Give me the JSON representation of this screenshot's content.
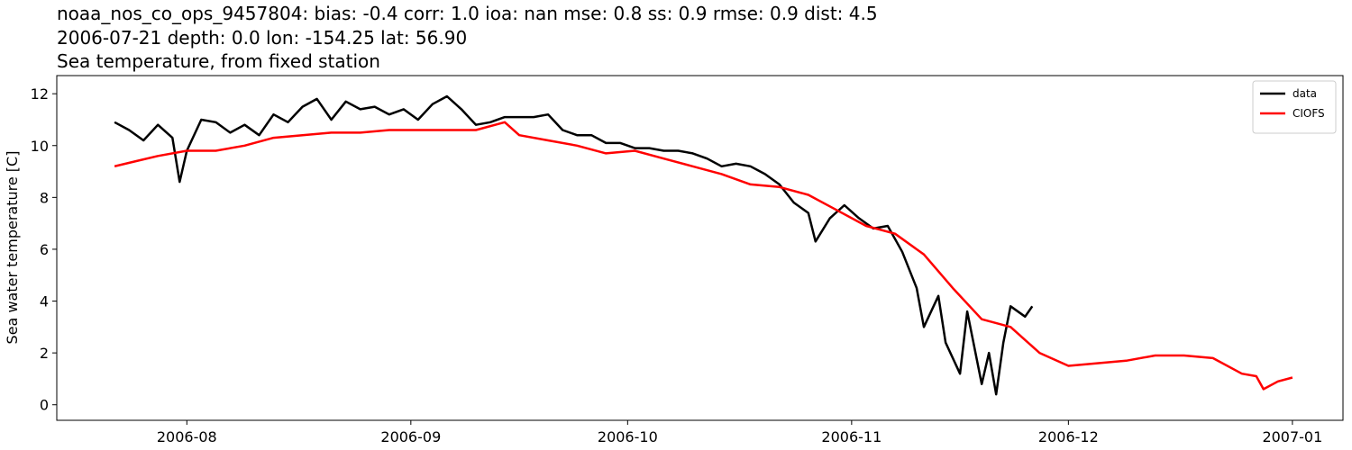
{
  "chart_data": {
    "type": "line",
    "title": "noaa_nos_co_ops_9457804: bias: -0.4  corr: 1.0  ioa: nan  mse: 0.8  ss: 0.9  rmse: 0.9  dist: 4.5",
    "subtitle": "2006-07-21 depth: 0.0 lon: -154.25 lat: 56.90",
    "subtitle2": "Sea temperature, from fixed station",
    "y_label": "Sea water temperature [C]",
    "xlim": [
      "2006-07-14",
      "2007-01-08"
    ],
    "xticks": [
      {
        "value": "2006-08-01",
        "label": "2006-08"
      },
      {
        "value": "2006-09-01",
        "label": "2006-09"
      },
      {
        "value": "2006-10-01",
        "label": "2006-10"
      },
      {
        "value": "2006-11-01",
        "label": "2006-11"
      },
      {
        "value": "2006-12-01",
        "label": "2006-12"
      },
      {
        "value": "2007-01-01",
        "label": "2007-01"
      }
    ],
    "ylim": [
      -0.6,
      12.7
    ],
    "yticks": [
      0,
      2,
      4,
      6,
      8,
      10,
      12
    ],
    "legend": "upper-right",
    "series": [
      {
        "name": "data",
        "color": "#000000",
        "x": [
          "2006-07-22",
          "2006-07-24",
          "2006-07-26",
          "2006-07-28",
          "2006-07-30",
          "2006-07-31",
          "2006-08-01",
          "2006-08-03",
          "2006-08-05",
          "2006-08-07",
          "2006-08-09",
          "2006-08-11",
          "2006-08-13",
          "2006-08-15",
          "2006-08-17",
          "2006-08-19",
          "2006-08-21",
          "2006-08-23",
          "2006-08-25",
          "2006-08-27",
          "2006-08-29",
          "2006-08-31",
          "2006-09-02",
          "2006-09-04",
          "2006-09-06",
          "2006-09-08",
          "2006-09-10",
          "2006-09-12",
          "2006-09-14",
          "2006-09-16",
          "2006-09-18",
          "2006-09-20",
          "2006-09-22",
          "2006-09-24",
          "2006-09-26",
          "2006-09-28",
          "2006-09-30",
          "2006-10-02",
          "2006-10-04",
          "2006-10-06",
          "2006-10-08",
          "2006-10-10",
          "2006-10-12",
          "2006-10-14",
          "2006-10-16",
          "2006-10-18",
          "2006-10-20",
          "2006-10-22",
          "2006-10-24",
          "2006-10-26",
          "2006-10-27",
          "2006-10-29",
          "2006-10-31",
          "2006-11-02",
          "2006-11-04",
          "2006-11-06",
          "2006-11-08",
          "2006-11-10",
          "2006-11-11",
          "2006-11-13",
          "2006-11-14",
          "2006-11-16",
          "2006-11-17",
          "2006-11-19",
          "2006-11-20",
          "2006-11-21",
          "2006-11-22",
          "2006-11-23",
          "2006-11-25",
          "2006-11-26"
        ],
        "values": [
          10.9,
          10.6,
          10.2,
          10.8,
          10.3,
          8.6,
          9.8,
          11.0,
          10.9,
          10.5,
          10.8,
          10.4,
          11.2,
          10.9,
          11.5,
          11.8,
          11.0,
          11.7,
          11.4,
          11.5,
          11.2,
          11.4,
          11.0,
          11.6,
          11.9,
          11.4,
          10.8,
          10.9,
          11.1,
          11.1,
          11.1,
          11.2,
          10.6,
          10.4,
          10.4,
          10.1,
          10.1,
          9.9,
          9.9,
          9.8,
          9.8,
          9.7,
          9.5,
          9.2,
          9.3,
          9.2,
          8.9,
          8.5,
          7.8,
          7.4,
          6.3,
          7.2,
          7.7,
          7.2,
          6.8,
          6.9,
          5.9,
          4.5,
          3.0,
          4.2,
          2.4,
          1.2,
          3.6,
          0.8,
          2.0,
          0.4,
          2.4,
          3.8,
          3.4,
          3.8
        ]
      },
      {
        "name": "CIOFS",
        "color": "#ff0000",
        "x": [
          "2006-07-22",
          "2006-07-25",
          "2006-07-28",
          "2006-08-01",
          "2006-08-05",
          "2006-08-09",
          "2006-08-13",
          "2006-08-17",
          "2006-08-21",
          "2006-08-25",
          "2006-08-29",
          "2006-09-02",
          "2006-09-06",
          "2006-09-10",
          "2006-09-14",
          "2006-09-16",
          "2006-09-20",
          "2006-09-24",
          "2006-09-28",
          "2006-10-02",
          "2006-10-06",
          "2006-10-10",
          "2006-10-14",
          "2006-10-18",
          "2006-10-22",
          "2006-10-26",
          "2006-10-30",
          "2006-11-03",
          "2006-11-07",
          "2006-11-11",
          "2006-11-15",
          "2006-11-19",
          "2006-11-23",
          "2006-11-27",
          "2006-12-01",
          "2006-12-05",
          "2006-12-09",
          "2006-12-13",
          "2006-12-17",
          "2006-12-21",
          "2006-12-25",
          "2006-12-27",
          "2006-12-28",
          "2006-12-30",
          "2007-01-01"
        ],
        "values": [
          9.2,
          9.4,
          9.6,
          9.8,
          9.8,
          10.0,
          10.3,
          10.4,
          10.5,
          10.5,
          10.6,
          10.6,
          10.6,
          10.6,
          10.9,
          10.4,
          10.2,
          10.0,
          9.7,
          9.8,
          9.5,
          9.2,
          8.9,
          8.5,
          8.4,
          8.1,
          7.5,
          6.9,
          6.6,
          5.8,
          4.5,
          3.3,
          3.0,
          2.0,
          1.5,
          1.6,
          1.7,
          1.9,
          1.9,
          1.8,
          1.2,
          1.1,
          0.6,
          0.9,
          1.05
        ]
      }
    ]
  }
}
